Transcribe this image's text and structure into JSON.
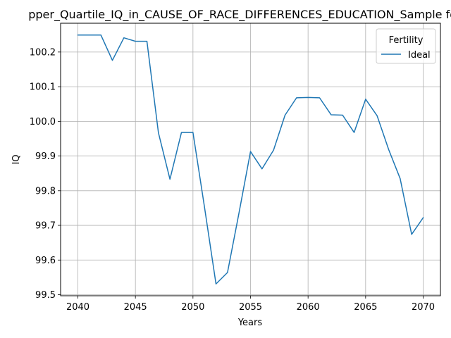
{
  "chart_data": {
    "type": "line",
    "title": "pper_Quartile_IQ_in_CAUSE_OF_RACE_DIFFERENCES_EDUCATION_Sample for E",
    "xlabel": "Years",
    "ylabel": "IQ",
    "xlim": [
      2038.5,
      2071.5
    ],
    "ylim": [
      99.497,
      100.283
    ],
    "x_ticks": [
      "2040",
      "2045",
      "2050",
      "2055",
      "2060",
      "2065",
      "2070"
    ],
    "x_tick_values": [
      2040,
      2045,
      2050,
      2055,
      2060,
      2065,
      2070
    ],
    "y_ticks": [
      "99.5",
      "99.6",
      "99.7",
      "99.8",
      "99.9",
      "100.0",
      "100.1",
      "100.2"
    ],
    "y_tick_values": [
      99.5,
      99.6,
      99.7,
      99.8,
      99.9,
      100.0,
      100.1,
      100.2
    ],
    "grid": true,
    "legend": {
      "title": "Fertility",
      "placement": "top-right"
    },
    "series": [
      {
        "name": "Ideal",
        "color": "#1f77b4",
        "x": [
          2040,
          2041,
          2042,
          2043,
          2044,
          2045,
          2046,
          2047,
          2048,
          2049,
          2050,
          2051,
          2052,
          2053,
          2054,
          2055,
          2056,
          2057,
          2058,
          2059,
          2060,
          2061,
          2062,
          2063,
          2064,
          2065,
          2066,
          2067,
          2068,
          2069,
          2070
        ],
        "y": [
          100.249,
          100.249,
          100.249,
          100.176,
          100.241,
          100.231,
          100.231,
          99.967,
          99.833,
          99.968,
          99.968,
          99.753,
          99.531,
          99.564,
          99.736,
          99.913,
          99.863,
          99.917,
          100.018,
          100.068,
          100.069,
          100.068,
          100.019,
          100.018,
          99.968,
          100.064,
          100.016,
          99.919,
          99.835,
          99.674,
          99.722
        ]
      }
    ]
  }
}
